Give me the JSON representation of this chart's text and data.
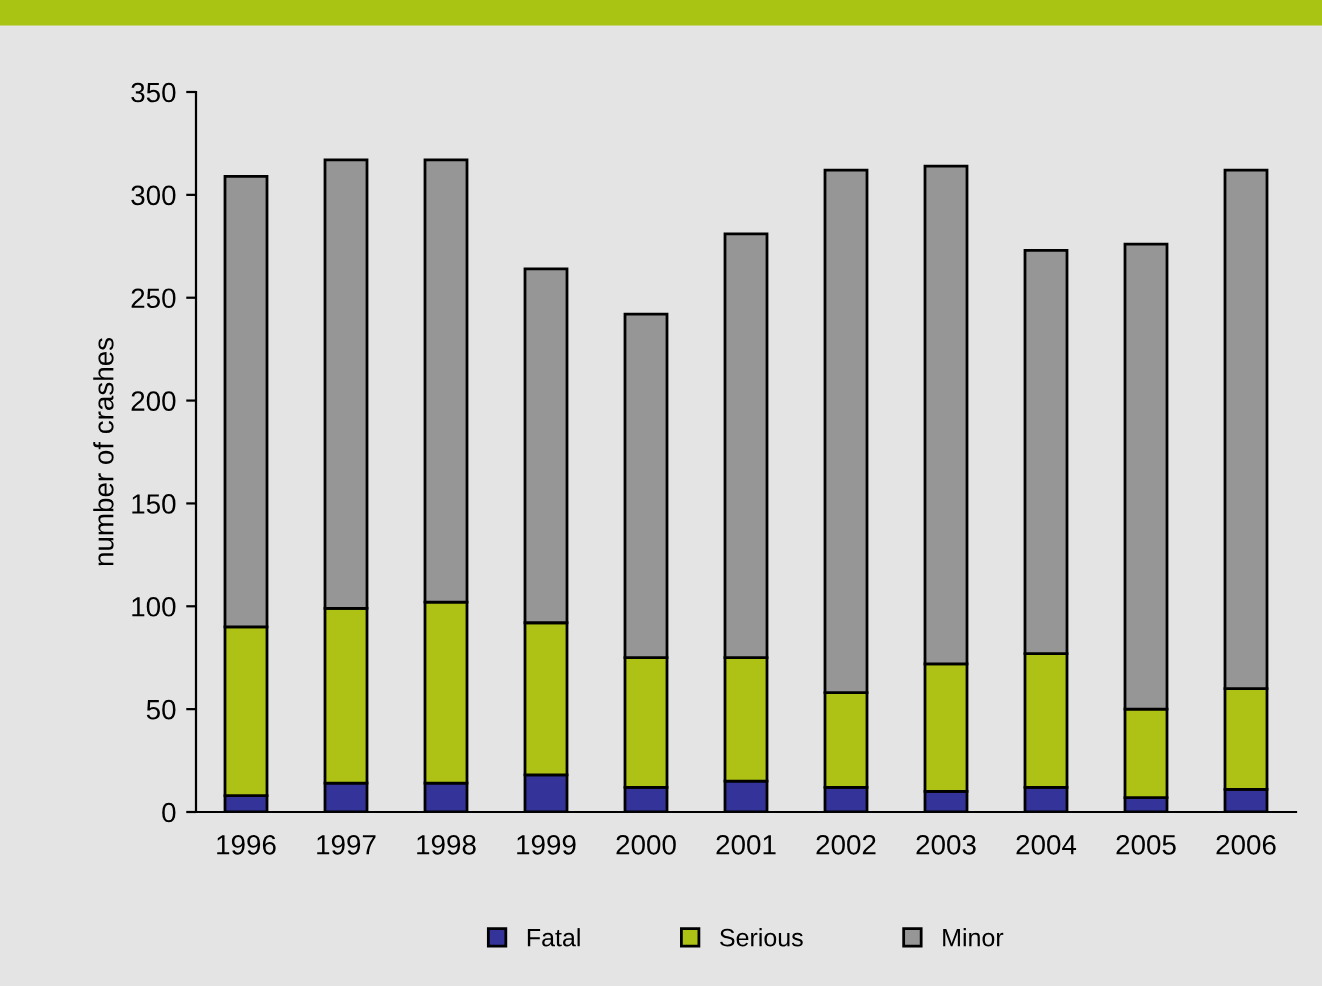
{
  "chart_data": {
    "type": "bar",
    "stacked": true,
    "ylabel": "number of crashes",
    "categories": [
      "1996",
      "1997",
      "1998",
      "1999",
      "2000",
      "2001",
      "2002",
      "2003",
      "2004",
      "2005",
      "2006"
    ],
    "series": [
      {
        "name": "Fatal",
        "color": "#333399",
        "values": [
          8,
          14,
          14,
          18,
          12,
          15,
          12,
          10,
          12,
          7,
          11
        ]
      },
      {
        "name": "Serious",
        "color": "#adc214",
        "values": [
          82,
          85,
          88,
          74,
          63,
          60,
          46,
          62,
          65,
          43,
          49
        ]
      },
      {
        "name": "Minor",
        "color": "#969696",
        "values": [
          219,
          218,
          215,
          172,
          167,
          206,
          254,
          242,
          196,
          226,
          252
        ]
      }
    ],
    "ylim": [
      0,
      350
    ],
    "yticks": [
      0,
      50,
      100,
      150,
      200,
      250,
      300,
      350
    ],
    "grid": false,
    "legend": "bottom"
  }
}
